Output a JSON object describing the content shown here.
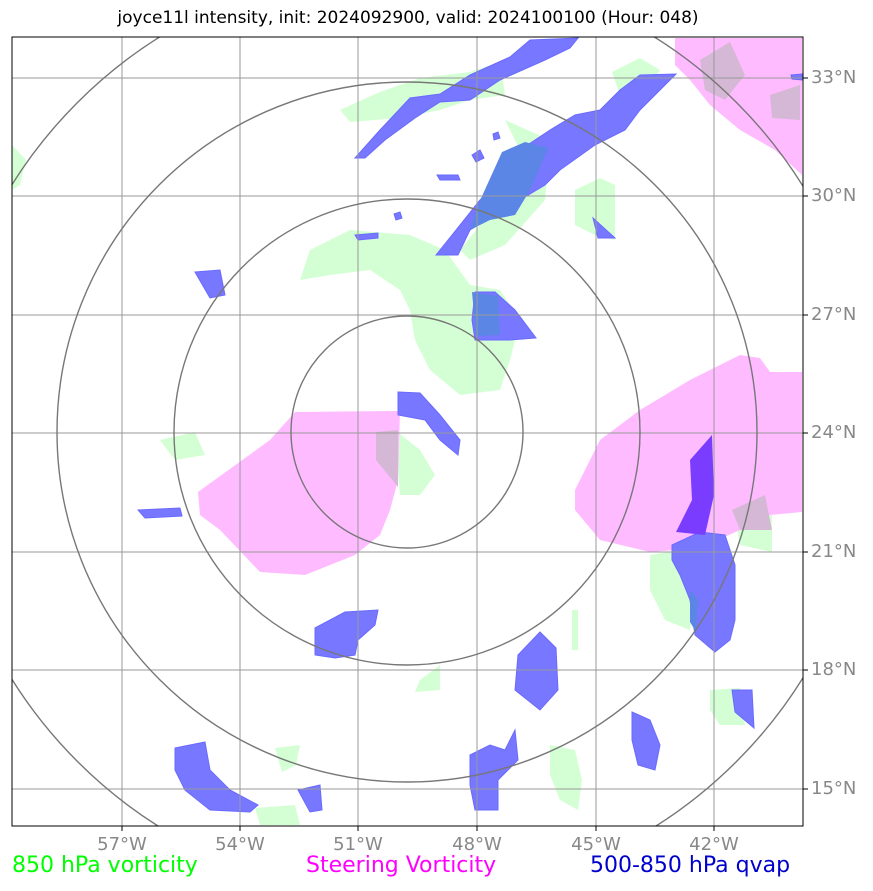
{
  "title": "joyce11l intensity, init: 2024092900, valid: 2024100100 (Hour: 048)",
  "lat_labels": [
    "33°N",
    "30°N",
    "27°N",
    "24°N",
    "21°N",
    "18°N",
    "15°N"
  ],
  "lon_labels": [
    "57°W",
    "54°W",
    "51°W",
    "48°W",
    "45°W",
    "42°W"
  ],
  "legend": {
    "vorticity_850": "850 hPa vorticity",
    "steering": "Steering Vorticity",
    "qvap": "500-850 hPa qvap"
  },
  "colors": {
    "vorticity_850": "#00ff00",
    "steering": "#ff00ff",
    "qvap": "#0000cc",
    "green_fill": "#ccffcc",
    "pink_fill": "#ffaaff",
    "blue_fill": "#5555ff",
    "grid": "#999999",
    "rings": "#777777"
  }
}
